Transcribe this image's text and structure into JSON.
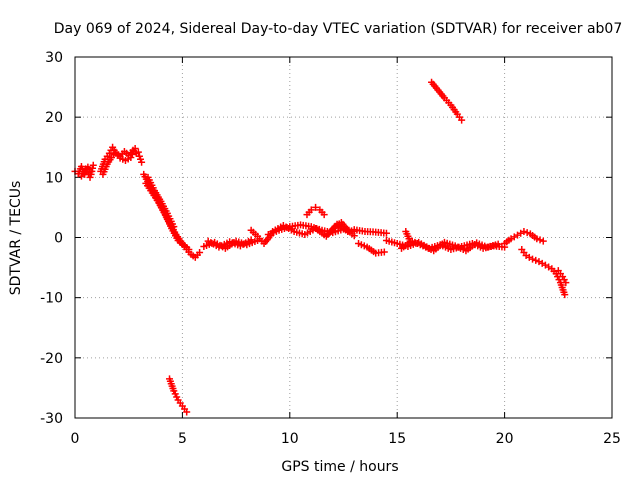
{
  "chart_data": {
    "type": "scatter",
    "title": "Day 069 of 2024, Sidereal Day-to-day VTEC variation (SDTVAR) for receiver ab07",
    "xlabel": "GPS time / hours",
    "ylabel": "SDTVAR / TECUs",
    "xlim": [
      0,
      25
    ],
    "ylim": [
      -30,
      30
    ],
    "x_ticks": [
      0,
      5,
      10,
      15,
      20,
      25
    ],
    "y_ticks": [
      -30,
      -20,
      -10,
      0,
      10,
      20,
      30
    ],
    "x_tick_labels": [
      "0",
      "5",
      "10",
      "15",
      "20",
      "25"
    ],
    "y_tick_labels": [
      "-30",
      "-20",
      "-10",
      "0",
      "10",
      "20",
      "30"
    ],
    "grid": true,
    "marker": "plus",
    "series": [
      {
        "name": "SDTVAR",
        "color": "#ff0000",
        "segments": [
          {
            "x": [
              0.0,
              0.15,
              0.3,
              0.45,
              0.6,
              0.75,
              0.85
            ],
            "y": [
              11,
              10.6,
              11.8,
              10.5,
              11.7,
              10.5,
              12
            ]
          },
          {
            "x": [
              0.3,
              0.5,
              0.7
            ],
            "y": [
              10.2,
              11.4,
              10.0
            ]
          },
          {
            "x": [
              1.2,
              1.4,
              1.6,
              1.75,
              1.9,
              2.1,
              2.3,
              2.5,
              2.7,
              2.85,
              3.0,
              3.1
            ],
            "y": [
              11,
              13,
              14,
              15,
              14,
              13.5,
              14.3,
              13.7,
              14.5,
              14,
              13.5,
              12.5
            ]
          },
          {
            "x": [
              1.3,
              1.5,
              1.7,
              1.9,
              2.1,
              2.35,
              2.6,
              2.8,
              2.95
            ],
            "y": [
              10.5,
              12.2,
              13.3,
              14.2,
              13.2,
              12.8,
              13.3,
              14.8,
              14.2
            ]
          },
          {
            "x": [
              3.2,
              3.5,
              3.8,
              4.1,
              4.4,
              4.7,
              5.0,
              5.3
            ],
            "y": [
              10.5,
              8.5,
              6.5,
              4.5,
              2.5,
              0.5,
              -1,
              -2
            ]
          },
          {
            "x": [
              3.3,
              3.6,
              3.9,
              4.2,
              4.5,
              4.8,
              5.1
            ],
            "y": [
              9,
              7.4,
              5.8,
              3.8,
              1.5,
              -0.5,
              -1.5
            ]
          },
          {
            "x": [
              3.4,
              3.7,
              4.0,
              4.3,
              4.6
            ],
            "y": [
              10,
              7.8,
              6,
              4,
              1.8
            ]
          },
          {
            "x": [
              5.2,
              5.4,
              5.6,
              5.8
            ],
            "y": [
              -2,
              -2.8,
              -3.3,
              -2.5
            ]
          },
          {
            "x": [
              6.0,
              6.5,
              7.0,
              7.5,
              8.0,
              8.5
            ],
            "y": [
              -1.5,
              -0.8,
              -1.8,
              -0.6,
              -1.2,
              -0.5
            ]
          },
          {
            "x": [
              6.2,
              6.7,
              7.2,
              7.7,
              8.2
            ],
            "y": [
              -0.6,
              -1.6,
              -0.7,
              -1.4,
              -0.4
            ]
          },
          {
            "x": [
              8.2,
              8.5,
              8.8,
              9.1
            ],
            "y": [
              1.2,
              0.2,
              -1,
              0.3
            ]
          },
          {
            "x": [
              9.0,
              9.5,
              10.0,
              10.5,
              11.0,
              11.5,
              12.0,
              12.5,
              13.0
            ],
            "y": [
              0.5,
              1.2,
              1.8,
              2.1,
              1.8,
              1.2,
              0.8,
              1.4,
              1.0
            ]
          },
          {
            "x": [
              9.2,
              9.7,
              10.2,
              10.7,
              11.2,
              11.7,
              12.2,
              12.7
            ],
            "y": [
              1.0,
              2.0,
              1.0,
              0.5,
              1.5,
              0.2,
              2.2,
              1.0
            ]
          },
          {
            "x": [
              10.8,
              11.0,
              11.2,
              11.4,
              11.6
            ],
            "y": [
              3.8,
              4.6,
              5.0,
              4.6,
              3.8
            ]
          },
          {
            "x": [
              11.8,
              12.1,
              12.4,
              12.7,
              13.0
            ],
            "y": [
              0.6,
              1.8,
              2.5,
              1.2,
              0.3
            ]
          },
          {
            "x": [
              13.0,
              13.5,
              14.0,
              14.5
            ],
            "y": [
              1.3,
              1.0,
              0.9,
              0.7
            ]
          },
          {
            "x": [
              13.2,
              13.6,
              14.0,
              14.4
            ],
            "y": [
              -1.0,
              -1.6,
              -2.6,
              -2.4
            ]
          },
          {
            "x": [
              14.5,
              15.0,
              15.5,
              16.0,
              16.5,
              17.0,
              17.5,
              18.0,
              18.5,
              19.0,
              19.5,
              20.0
            ],
            "y": [
              -0.5,
              -1.0,
              -1.5,
              -0.8,
              -1.8,
              -1.2,
              -2.0,
              -1.5,
              -1.0,
              -1.8,
              -1.4,
              -1.6
            ]
          },
          {
            "x": [
              15.2,
              15.7,
              16.2,
              16.7,
              17.2,
              17.7,
              18.2,
              18.7,
              19.2,
              19.7
            ],
            "y": [
              -1.8,
              -0.6,
              -1.4,
              -2.2,
              -0.8,
              -1.4,
              -2.2,
              -0.9,
              -1.6,
              -1.1
            ]
          },
          {
            "x": [
              15.4,
              15.5,
              15.6
            ],
            "y": [
              1.0,
              0.2,
              -0.6
            ]
          },
          {
            "x": [
              16.6,
              16.9,
              17.2,
              17.5,
              17.8,
              18.0
            ],
            "y": [
              25.8,
              24.5,
              23.2,
              22.0,
              20.5,
              19.5
            ]
          },
          {
            "x": [
              20.0,
              20.3,
              20.6,
              20.9,
              21.2,
              21.5,
              21.8
            ],
            "y": [
              -1.0,
              -0.2,
              0.4,
              1.0,
              0.6,
              -0.2,
              -0.6
            ]
          },
          {
            "x": [
              20.8,
              21.0,
              21.3,
              21.6,
              21.9,
              22.2,
              22.4,
              22.6,
              22.8
            ],
            "y": [
              -2.0,
              -3.0,
              -3.6,
              -4.0,
              -4.6,
              -5.2,
              -6.0,
              -7.5,
              -9.5
            ]
          },
          {
            "x": [
              22.5,
              22.7,
              22.85
            ],
            "y": [
              -5.5,
              -6.5,
              -7.5
            ]
          },
          {
            "x": [
              4.4,
              4.6,
              4.8,
              5.0,
              5.2
            ],
            "y": [
              -23.5,
              -25.5,
              -27.0,
              -28.0,
              -29.0
            ]
          }
        ]
      }
    ]
  }
}
